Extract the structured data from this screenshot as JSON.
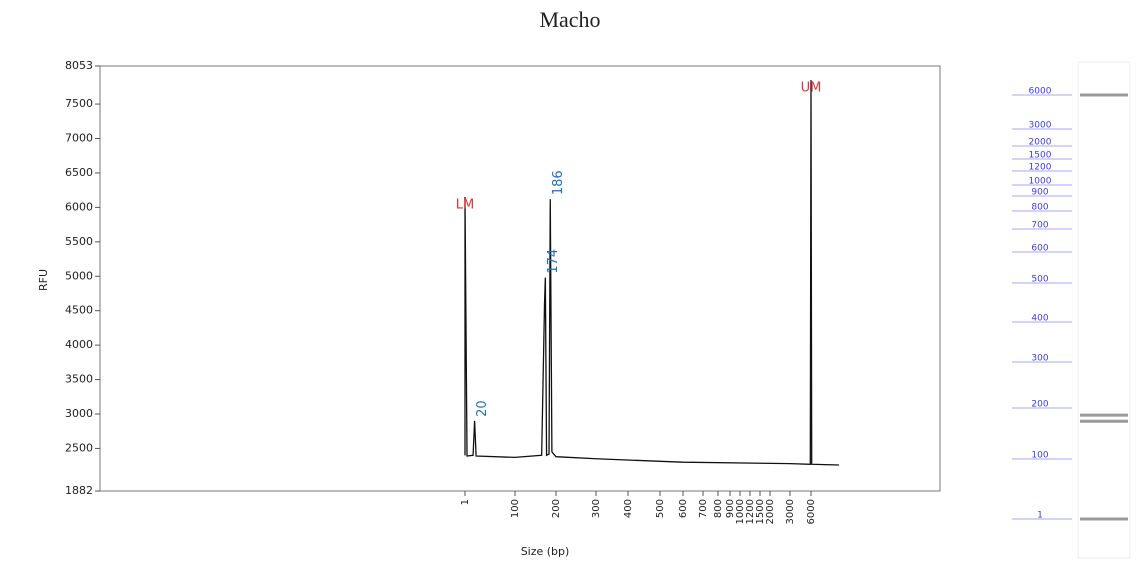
{
  "chart_data": {
    "type": "line",
    "title": "Macho",
    "y_label": "RFU",
    "x_label": "Size (bp)",
    "ylim": [
      1882,
      8053
    ],
    "yticks": [
      1882,
      2500,
      3000,
      3500,
      4000,
      4500,
      5000,
      5500,
      6000,
      6500,
      7000,
      7500,
      8053
    ],
    "xticks": [
      1,
      100,
      200,
      300,
      400,
      500,
      600,
      700,
      800,
      900,
      1000,
      1200,
      1500,
      2000,
      3000,
      6000
    ],
    "series": [
      {
        "color": "#111111",
        "x": [
          1,
          1,
          5,
          17,
          20,
          23,
          100,
          165,
          172,
          174,
          177,
          183,
          186,
          190,
          200,
          300,
          600,
          3000,
          5900,
          6000,
          6100,
          10000
        ],
        "values": [
          2400,
          6150,
          2390,
          2400,
          2900,
          2390,
          2370,
          2400,
          4600,
          4980,
          2400,
          2420,
          6120,
          2450,
          2380,
          2350,
          2300,
          2280,
          2270,
          7850,
          2270,
          2260
        ]
      }
    ],
    "annotations": [
      {
        "text": "LM",
        "x": 1,
        "y": 6150,
        "color": "#e8312f"
      },
      {
        "text": "20",
        "x": 20,
        "y": 2900,
        "color": "#1f6fbf"
      },
      {
        "text": "174",
        "x": 174,
        "y": 4980,
        "color": "#1f6fbf"
      },
      {
        "text": "186",
        "x": 186,
        "y": 6120,
        "color": "#1f6fbf"
      },
      {
        "text": "UM",
        "x": 6000,
        "y": 7850,
        "color": "#e8312f"
      }
    ]
  },
  "gel": {
    "ladder": [
      6000,
      3000,
      2000,
      1500,
      1200,
      1000,
      900,
      800,
      700,
      600,
      500,
      400,
      300,
      200,
      100,
      1
    ],
    "bands": [
      6000,
      186,
      174,
      1
    ],
    "ladder_color": "#3b3bf0",
    "band_color": "#9a9a9a"
  }
}
